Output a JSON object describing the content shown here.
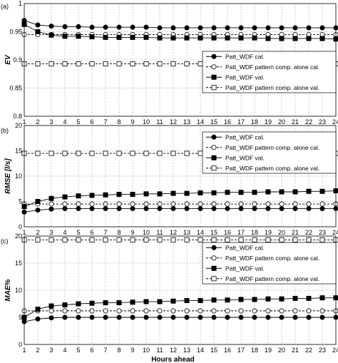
{
  "colors": {
    "line": "#000000",
    "grid": "#9a9a9a",
    "background": "#ffffff"
  },
  "chart_data": [
    {
      "type": "line",
      "panel_label": "(a)",
      "xlabel": "Hours ahead",
      "ylabel": "EV",
      "x": [
        1,
        2,
        3,
        4,
        5,
        6,
        7,
        8,
        9,
        10,
        11,
        12,
        13,
        14,
        15,
        16,
        17,
        18,
        19,
        20,
        21,
        22,
        23,
        24
      ],
      "xlim": [
        1,
        24
      ],
      "ylim": [
        0.8,
        1.0
      ],
      "yticks": [
        "0.8",
        "0.85",
        "0.9",
        "0.95",
        "1"
      ],
      "grid": true,
      "legend_position": "lower-right",
      "series": [
        {
          "name": "Patt_WDF cal.",
          "marker": "filled-circle",
          "line": "solid",
          "values": [
            0.97,
            0.962,
            0.96,
            0.959,
            0.959,
            0.958,
            0.958,
            0.958,
            0.958,
            0.958,
            0.957,
            0.957,
            0.957,
            0.957,
            0.957,
            0.957,
            0.957,
            0.957,
            0.957,
            0.957,
            0.957,
            0.957,
            0.957,
            0.957
          ]
        },
        {
          "name": "Patt_WDF pattern comp. alone cal.",
          "marker": "open-circle",
          "line": "dashed",
          "values": [
            0.945,
            0.945,
            0.945,
            0.945,
            0.945,
            0.945,
            0.945,
            0.945,
            0.945,
            0.945,
            0.945,
            0.945,
            0.945,
            0.945,
            0.945,
            0.945,
            0.945,
            0.945,
            0.945,
            0.945,
            0.945,
            0.945,
            0.945,
            0.945
          ]
        },
        {
          "name": "Patt_WDF val.",
          "marker": "filled-square",
          "line": "solid",
          "values": [
            0.963,
            0.95,
            0.944,
            0.942,
            0.942,
            0.941,
            0.94,
            0.94,
            0.94,
            0.94,
            0.939,
            0.939,
            0.939,
            0.939,
            0.939,
            0.939,
            0.939,
            0.939,
            0.938,
            0.938,
            0.938,
            0.938,
            0.938,
            0.937
          ]
        },
        {
          "name": "Patt_WDF pattern comp. alone val.",
          "marker": "open-square",
          "line": "dashed",
          "values": [
            0.893,
            0.893,
            0.893,
            0.893,
            0.893,
            0.893,
            0.893,
            0.893,
            0.893,
            0.893,
            0.893,
            0.893,
            0.893,
            0.893,
            0.893,
            0.893,
            0.893,
            0.893,
            0.893,
            0.893,
            0.893,
            0.893,
            0.893,
            0.893
          ]
        }
      ]
    },
    {
      "type": "line",
      "panel_label": "(b)",
      "xlabel": "Hours ahead",
      "ylabel": "RMSE [l/s]",
      "x": [
        1,
        2,
        3,
        4,
        5,
        6,
        7,
        8,
        9,
        10,
        11,
        12,
        13,
        14,
        15,
        16,
        17,
        18,
        19,
        20,
        21,
        22,
        23,
        24
      ],
      "xlim": [
        1,
        24
      ],
      "ylim": [
        0,
        20
      ],
      "yticks": [
        "0",
        "5",
        "10",
        "15",
        "20"
      ],
      "grid": true,
      "legend_position": "top-right",
      "series": [
        {
          "name": "Patt_WDF cal.",
          "marker": "filled-circle",
          "line": "solid",
          "values": [
            2.9,
            3.3,
            3.5,
            3.6,
            3.6,
            3.6,
            3.6,
            3.6,
            3.6,
            3.6,
            3.6,
            3.6,
            3.6,
            3.6,
            3.6,
            3.6,
            3.6,
            3.6,
            3.6,
            3.6,
            3.6,
            3.6,
            3.6,
            3.6
          ]
        },
        {
          "name": "Patt_WDF pattern comp. alone cal.",
          "marker": "open-circle",
          "line": "dashed",
          "values": [
            4.5,
            4.5,
            4.5,
            4.5,
            4.5,
            4.5,
            4.5,
            4.5,
            4.5,
            4.5,
            4.5,
            4.5,
            4.5,
            4.5,
            4.5,
            4.5,
            4.5,
            4.5,
            4.5,
            4.5,
            4.5,
            4.5,
            4.5,
            4.5
          ]
        },
        {
          "name": "Patt_WDF val.",
          "marker": "filled-square",
          "line": "solid",
          "values": [
            4.0,
            5.0,
            5.6,
            5.9,
            6.1,
            6.2,
            6.3,
            6.4,
            6.4,
            6.5,
            6.5,
            6.6,
            6.6,
            6.7,
            6.7,
            6.8,
            6.8,
            6.8,
            6.9,
            6.9,
            6.9,
            7.0,
            7.0,
            7.1
          ]
        },
        {
          "name": "Patt_WDF pattern comp. alone val.",
          "marker": "open-square",
          "line": "dashed",
          "values": [
            14.5,
            14.5,
            14.5,
            14.5,
            14.5,
            14.5,
            14.5,
            14.5,
            14.5,
            14.5,
            14.5,
            14.5,
            14.5,
            14.5,
            14.5,
            14.5,
            14.5,
            14.5,
            14.5,
            14.5,
            14.5,
            14.5,
            14.5,
            14.5
          ]
        }
      ]
    },
    {
      "type": "line",
      "panel_label": "(c)",
      "xlabel": "Hours ahead",
      "ylabel": "MAE%",
      "x": [
        1,
        2,
        3,
        4,
        5,
        6,
        7,
        8,
        9,
        10,
        11,
        12,
        13,
        14,
        15,
        16,
        17,
        18,
        19,
        20,
        21,
        22,
        23,
        24
      ],
      "xlim": [
        1,
        24
      ],
      "ylim": [
        0,
        20
      ],
      "yticks": [
        "0",
        "5",
        "10",
        "15",
        "20"
      ],
      "grid": true,
      "legend_position": "top-right",
      "series": [
        {
          "name": "Patt_WDF cal.",
          "marker": "filled-circle",
          "line": "solid",
          "values": [
            4.2,
            4.7,
            4.9,
            5.0,
            5.0,
            5.0,
            5.0,
            5.0,
            5.0,
            5.0,
            5.0,
            5.0,
            5.0,
            5.0,
            5.0,
            5.0,
            5.0,
            5.0,
            5.0,
            5.0,
            5.0,
            5.0,
            5.0,
            5.0
          ]
        },
        {
          "name": "Patt_WDF pattern comp. alone cal.",
          "marker": "open-circle",
          "line": "dashed",
          "values": [
            6.2,
            6.2,
            6.2,
            6.2,
            6.2,
            6.2,
            6.2,
            6.2,
            6.2,
            6.2,
            6.2,
            6.2,
            6.2,
            6.2,
            6.2,
            6.2,
            6.2,
            6.2,
            6.2,
            6.2,
            6.2,
            6.2,
            6.2,
            6.2
          ]
        },
        {
          "name": "Patt_WDF val.",
          "marker": "filled-square",
          "line": "solid",
          "values": [
            5.0,
            6.5,
            7.1,
            7.3,
            7.5,
            7.6,
            7.7,
            7.7,
            7.8,
            7.9,
            7.9,
            8.0,
            8.1,
            8.1,
            8.2,
            8.2,
            8.3,
            8.3,
            8.4,
            8.4,
            8.5,
            8.5,
            8.6,
            8.6
          ]
        },
        {
          "name": "Patt_WDF pattern comp. alone val.",
          "marker": "open-square",
          "line": "dashed",
          "values": [
            19.3,
            19.3,
            19.3,
            19.3,
            19.3,
            19.3,
            19.3,
            19.3,
            19.3,
            19.3,
            19.3,
            19.3,
            19.3,
            19.3,
            19.3,
            19.3,
            19.3,
            19.3,
            19.3,
            19.3,
            19.3,
            19.3,
            19.3,
            19.3
          ]
        }
      ]
    }
  ]
}
